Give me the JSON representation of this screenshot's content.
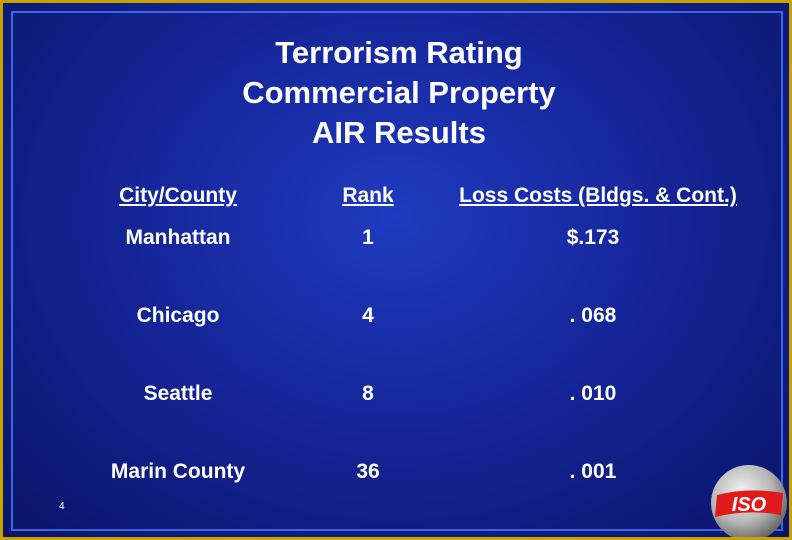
{
  "slide": {
    "title_lines": [
      "Terrorism Rating",
      "Commercial Property",
      "AIR Results"
    ],
    "page_number": "4",
    "logo_text": "ISO"
  },
  "table": {
    "headers": [
      "City/County",
      "Rank",
      "Loss Costs (Bldgs. & Cont.)"
    ],
    "rows": [
      [
        "Manhattan",
        "1",
        "$.173"
      ],
      [
        "Chicago",
        "4",
        ". 068"
      ],
      [
        "Seattle",
        "8",
        ". 010"
      ],
      [
        "Marin County",
        "36",
        ". 001"
      ]
    ]
  },
  "colors": {
    "background": "#15269a",
    "text": "#ffffff",
    "frame": "#c8a200",
    "logo_red": "#e01a1a"
  }
}
